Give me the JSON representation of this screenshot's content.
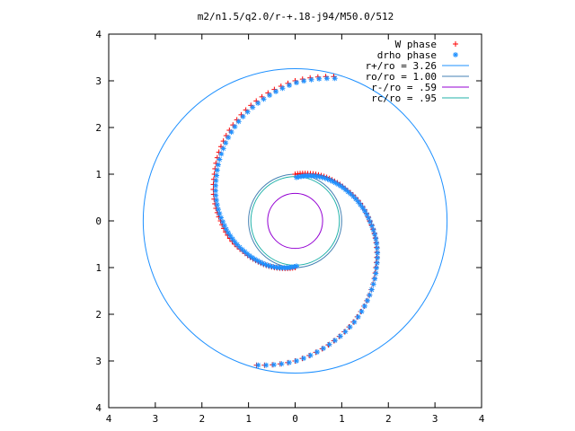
{
  "chart_data": {
    "type": "scatter",
    "title": "m2/n1.5/q2.0/r-+.18-j94/M50.0/512",
    "xlim": [
      -4,
      4
    ],
    "ylim": [
      -4,
      4
    ],
    "x_tick_values": [
      -4,
      -3,
      -2,
      -1,
      0,
      1,
      2,
      3,
      4
    ],
    "x_tick_labels": [
      "4",
      "3",
      "2",
      "1",
      "0",
      "1",
      "2",
      "3",
      "4"
    ],
    "y_tick_values": [
      4,
      3,
      2,
      1,
      0,
      -1,
      -2,
      -3,
      -4
    ],
    "y_tick_labels": [
      "4",
      "3",
      "2",
      "1",
      "0",
      "1",
      "2",
      "3",
      "4"
    ],
    "grid": false,
    "legend_position": "top-right",
    "series": [
      {
        "name": "W phase",
        "marker": "plus",
        "color": "#ff0000",
        "shape": "two-arm logarithmic spiral",
        "radius_range": [
          1.0,
          3.26
        ],
        "polar_points": [
          [
            1.0,
            90
          ],
          [
            1.05,
            75
          ],
          [
            1.12,
            60
          ],
          [
            1.2,
            45
          ],
          [
            1.3,
            30
          ],
          [
            1.45,
            15
          ],
          [
            1.6,
            0
          ],
          [
            1.8,
            -15
          ],
          [
            2.0,
            -30
          ],
          [
            2.25,
            -45
          ],
          [
            2.5,
            -60
          ],
          [
            2.75,
            -75
          ],
          [
            3.0,
            -90
          ],
          [
            3.2,
            -105
          ],
          [
            1.0,
            270
          ],
          [
            1.05,
            255
          ],
          [
            1.12,
            240
          ],
          [
            1.2,
            225
          ],
          [
            1.3,
            210
          ],
          [
            1.45,
            195
          ],
          [
            1.6,
            180
          ],
          [
            1.8,
            165
          ],
          [
            2.0,
            150
          ],
          [
            2.25,
            135
          ],
          [
            2.5,
            120
          ],
          [
            2.75,
            105
          ],
          [
            3.0,
            90
          ],
          [
            3.2,
            75
          ]
        ]
      },
      {
        "name": "drho phase",
        "marker": "asterisk",
        "color": "#1e90ff",
        "shape": "two-arm logarithmic spiral",
        "radius_range": [
          0.95,
          3.26
        ],
        "polar_points": [
          [
            0.95,
            90
          ],
          [
            1.02,
            75
          ],
          [
            1.1,
            60
          ],
          [
            1.18,
            45
          ],
          [
            1.28,
            30
          ],
          [
            1.42,
            15
          ],
          [
            1.58,
            0
          ],
          [
            1.78,
            -15
          ],
          [
            1.98,
            -30
          ],
          [
            2.22,
            -45
          ],
          [
            2.48,
            -60
          ],
          [
            2.72,
            -75
          ],
          [
            2.98,
            -90
          ],
          [
            3.18,
            -105
          ],
          [
            0.95,
            270
          ],
          [
            1.02,
            255
          ],
          [
            1.1,
            240
          ],
          [
            1.18,
            225
          ],
          [
            1.28,
            210
          ],
          [
            1.42,
            195
          ],
          [
            1.58,
            180
          ],
          [
            1.78,
            165
          ],
          [
            1.98,
            150
          ],
          [
            2.22,
            135
          ],
          [
            2.48,
            120
          ],
          [
            2.72,
            105
          ],
          [
            2.98,
            90
          ],
          [
            3.18,
            75
          ]
        ]
      },
      {
        "name": "r+/ro = 3.26",
        "type": "circle",
        "radius": 3.26,
        "color": "#1e90ff"
      },
      {
        "name": "ro/ro = 1.00",
        "type": "circle",
        "radius": 1.0,
        "color": "#4682b4"
      },
      {
        "name": "r-/ro =  .59",
        "type": "circle",
        "radius": 0.59,
        "color": "#9400d3"
      },
      {
        "name": "rc/ro =  .95",
        "type": "circle",
        "radius": 0.95,
        "color": "#20b2aa"
      }
    ]
  }
}
